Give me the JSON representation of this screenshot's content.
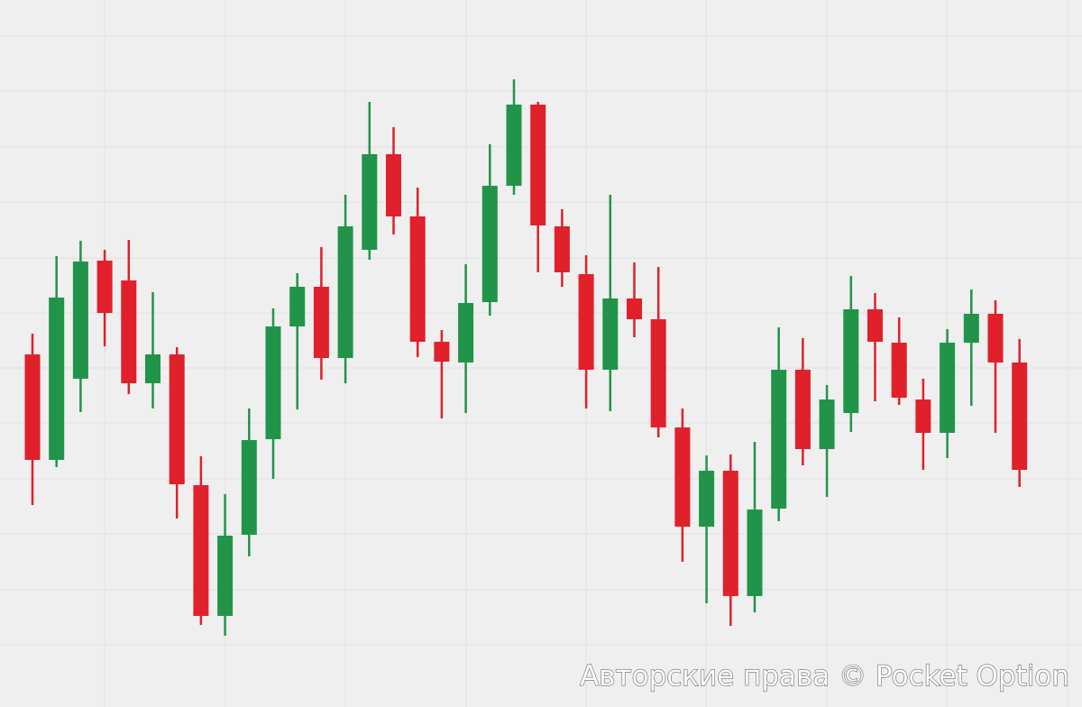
{
  "chart_data": {
    "type": "candlestick",
    "watermark": "Авторские права © Pocket Option",
    "up_color": "#21944a",
    "down_color": "#e0202b",
    "ylim": [
      0,
      784
    ],
    "yticks": [
      69,
      130,
      192,
      253,
      315,
      376,
      437,
      498,
      560,
      621,
      683,
      744
    ],
    "grid": true,
    "open": [
      391,
      274,
      364,
      495,
      473,
      359,
      391,
      246,
      101,
      191,
      297,
      422,
      466,
      387,
      507,
      613,
      544,
      405,
      382,
      449,
      578,
      668,
      533,
      480,
      374,
      453,
      430,
      310,
      200,
      262,
      123,
      220,
      374,
      286,
      326,
      441,
      404,
      341,
      304,
      404,
      436,
      382
    ],
    "high": [
      414,
      500,
      517,
      507,
      518,
      460,
      399,
      278,
      236,
      331,
      442,
      481,
      510,
      568,
      671,
      643,
      576,
      418,
      491,
      624,
      696,
      671,
      552,
      501,
      568,
      493,
      488,
      331,
      279,
      280,
      294,
      421,
      409,
      357,
      478,
      459,
      432,
      364,
      419,
      463,
      451,
      408
    ],
    "low": [
      224,
      266,
      327,
      400,
      347,
      331,
      209,
      91,
      79,
      167,
      253,
      330,
      363,
      359,
      496,
      524,
      388,
      320,
      326,
      434,
      568,
      482,
      466,
      331,
      328,
      410,
      299,
      161,
      115,
      90,
      105,
      206,
      268,
      233,
      305,
      339,
      335,
      263,
      276,
      334,
      304,
      244
    ],
    "close": [
      274,
      454,
      494,
      437,
      359,
      391,
      247,
      101,
      190,
      296,
      422,
      466,
      387,
      533,
      613,
      544,
      405,
      383,
      448,
      578,
      668,
      534,
      482,
      374,
      453,
      430,
      310,
      200,
      262,
      123,
      219,
      374,
      286,
      341,
      441,
      405,
      343,
      304,
      404,
      436,
      382,
      263
    ]
  }
}
